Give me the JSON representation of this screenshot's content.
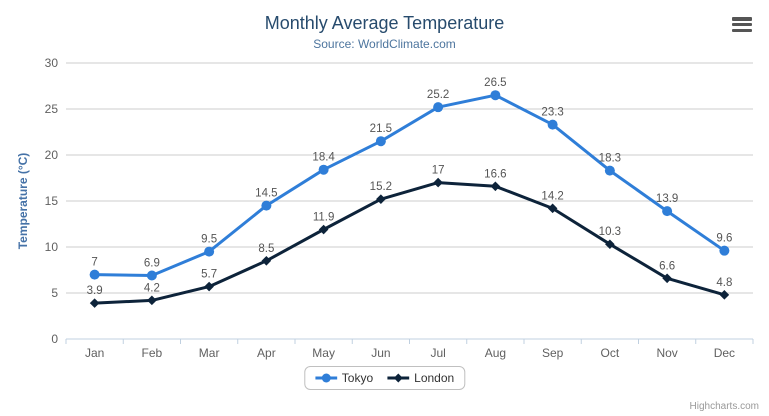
{
  "chart_data": {
    "type": "line",
    "title": "Monthly Average Temperature",
    "subtitle": "Source: WorldClimate.com",
    "xlabel": "",
    "ylabel": "Temperature (°C)",
    "ylim": [
      0,
      30
    ],
    "ytick_interval": 5,
    "grid": true,
    "legend_position": "bottom-center",
    "data_labels": true,
    "categories": [
      "Jan",
      "Feb",
      "Mar",
      "Apr",
      "May",
      "Jun",
      "Jul",
      "Aug",
      "Sep",
      "Oct",
      "Nov",
      "Dec"
    ],
    "series": [
      {
        "name": "Tokyo",
        "marker": "circle",
        "color": "#2f7ed8",
        "values": [
          7,
          6.9,
          9.5,
          14.5,
          18.4,
          21.5,
          25.2,
          26.5,
          23.3,
          18.3,
          13.9,
          9.6
        ]
      },
      {
        "name": "London",
        "marker": "diamond",
        "color": "#0d233a",
        "values": [
          3.9,
          4.2,
          5.7,
          8.5,
          11.9,
          15.2,
          17,
          16.6,
          14.2,
          10.3,
          6.6,
          4.8
        ]
      }
    ]
  },
  "credits": "Highcharts.com",
  "colors": {
    "title": "#274b6d",
    "subtitle": "#4d759e",
    "axis_title": "#4572a7",
    "axis_label": "#606060",
    "data_label": "#555555",
    "grid": "#cccccc",
    "axis_line": "#c0d0e0",
    "legend_text": "#333333",
    "legend_border": "#c0c0c0",
    "credits": "#999999",
    "menu_icon": "#555555",
    "background": "#ffffff"
  }
}
